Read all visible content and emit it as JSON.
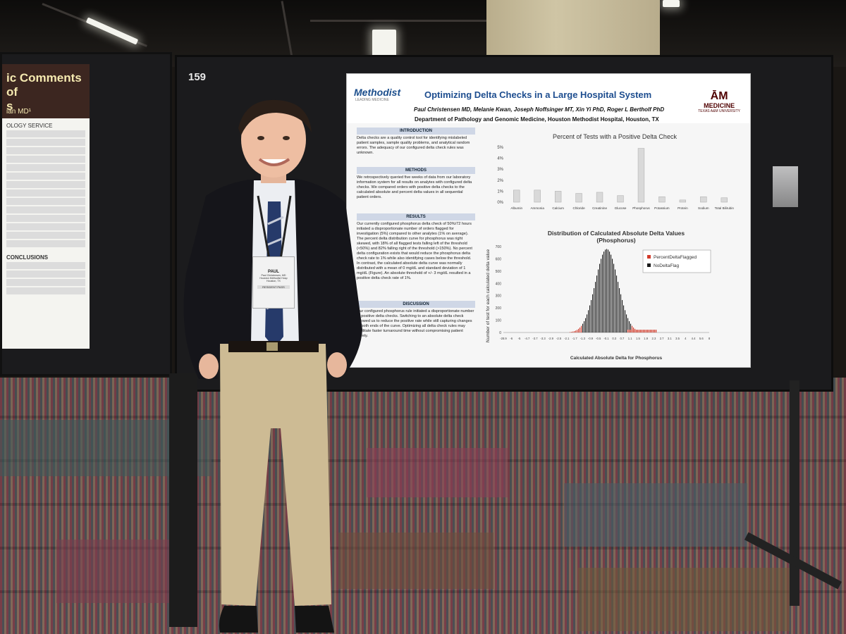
{
  "scene": {
    "board_number": "159"
  },
  "left_poster": {
    "title_fragment": "ic Comments of",
    "title_fragment2": "s",
    "author_fragment": "ian MD¹",
    "section_label": "OLOGY SERVICE",
    "conclusions_label": "CONCLUSIONS"
  },
  "poster": {
    "logo_left": "Methodist",
    "logo_left_sub": "LEADING MEDICINE",
    "title": "Optimizing Delta Checks in a Large Hospital System",
    "authors": "Paul Christensen MD, Melanie Kwan, Joseph Noffsinger MT, Xin Yi PhD, Roger L Bertholf PhD",
    "department": "Department of Pathology and Genomic Medicine, Houston Methodist Hospital, Houston, TX",
    "logo_right_mark": "ĀM",
    "logo_right_text": "MEDICINE",
    "logo_right_sub": "TEXAS A&M UNIVERSITY",
    "sections": [
      {
        "title": "INTRODUCTION",
        "text": "Delta checks are a quality control tool for identifying mislabeled patient samples, sample quality problems, and analytical random errors. The adequacy of our configured delta check rules was unknown."
      },
      {
        "title": "METHODS",
        "text": "We retrospectively queried five weeks of data from our laboratory information system for all results on analytes with configured delta checks. We compared orders with positive delta checks to the calculated absolute and percent delta values in all sequential patient orders."
      },
      {
        "title": "RESULTS",
        "text": "Our currently configured phosphorus delta check of 50%/72 hours initiated a disproportionate number of orders flagged for investigation (5%) compared to other analytes (1% on average). The percent delta distribution curve for phosphorus was right skewed, with 18% of all flagged tests falling left of the threshold (<50%) and 82% falling right of the threshold (>150%). No percent delta configuration exists that would reduce the phosphorus delta check rate to 1% while also identifying cases below the threshold. In contrast, the calculated absolute delta curve was normally distributed with a mean of 0 mg/dL and standard deviation of 1 mg/dL (Figure). An absolute threshold of +/- 3 mg/dL resulted in a positive delta check rate of 1%."
      },
      {
        "title": "DISCUSSION",
        "text": "Our configured phosphorus rule initiated a disproportionate number of positive delta checks. Switching to an absolute delta check allowed us to reduce the positive rate while still capturing changes at both ends of the curve. Optimizing all delta check rules may facilitate faster turnaround time without compromising patient safety."
      }
    ]
  },
  "badge": {
    "name": "PAUL",
    "line1": "Paul Christensen, MD",
    "line2": "Houston Methodist Hosp",
    "line3": "Houston, TX",
    "pass": "RESIDENT PASS"
  },
  "chart_data": [
    {
      "type": "bar",
      "title": "Percent of Tests with a Positive Delta Check",
      "categories": [
        "Albumin",
        "Ammonia",
        "Calcium",
        "Chloride",
        "Creatinine",
        "Glucose",
        "Phosphorus",
        "Potassium",
        "Protein",
        "Sodium",
        "Total Bilirubin"
      ],
      "values": [
        1.1,
        1.1,
        1.0,
        0.8,
        0.9,
        0.6,
        4.9,
        0.5,
        0.2,
        0.5,
        0.4
      ],
      "yticks": [
        "0%",
        "1%",
        "2%",
        "3%",
        "4%",
        "5%"
      ],
      "ylim": [
        0,
        5
      ],
      "bar_color": "#d9d9d9"
    },
    {
      "type": "bar",
      "title": "Distribution of Calculated Absolute Delta Values",
      "subtitle": "(Phosphorus)",
      "xlabel": "Calculated Absolute Delta for Phosphorus",
      "ylabel": "Number of test for each calculated delta value",
      "yticks": [
        "0",
        "100",
        "200",
        "300",
        "400",
        "500",
        "600",
        "700"
      ],
      "ylim": [
        0,
        700
      ],
      "xticks": [
        "-28.9",
        "-6",
        "-5",
        "-4.7",
        "-3.7",
        "-3.3",
        "-2.9",
        "-2.5",
        "-2.1",
        "-1.7",
        "-1.3",
        "-0.9",
        "-0.5",
        "-0.1",
        "0.3",
        "0.7",
        "1.1",
        "1.5",
        "1.9",
        "2.3",
        "2.7",
        "3.1",
        "3.5",
        "4",
        "4.4",
        "5.6",
        "8"
      ],
      "series": [
        {
          "name": "PercentDeltaFlagged",
          "color": "#d23a2a"
        },
        {
          "name": "NoDeltaFlag",
          "color": "#1a1a1a"
        }
      ],
      "distribution": {
        "mean": 0,
        "sd": 1,
        "peak": 680
      }
    }
  ]
}
